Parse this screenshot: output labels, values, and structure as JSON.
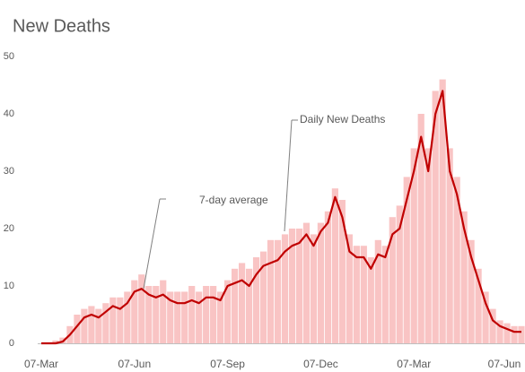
{
  "chart_data": {
    "type": "bar-line",
    "title": "New Deaths",
    "categories": [
      "07-Mar",
      null,
      null,
      null,
      null,
      null,
      null,
      null,
      null,
      null,
      null,
      null,
      null,
      "07-Jun",
      null,
      null,
      null,
      null,
      null,
      null,
      null,
      null,
      null,
      null,
      null,
      null,
      "07-Sep",
      null,
      null,
      null,
      null,
      null,
      null,
      null,
      null,
      null,
      null,
      null,
      null,
      "07-Dec",
      null,
      null,
      null,
      null,
      null,
      null,
      null,
      null,
      null,
      null,
      null,
      null,
      "07-Mar",
      null,
      null,
      null,
      null,
      null,
      null,
      null,
      null,
      null,
      null,
      null,
      null,
      "07-Jun",
      null,
      null
    ],
    "series": [
      {
        "name": "Daily New Deaths",
        "color": "#f9c4c4",
        "kind": "bar",
        "values": [
          0,
          0,
          0.5,
          1,
          3,
          5,
          6,
          6.5,
          6,
          7,
          8,
          8,
          9,
          11,
          12,
          10,
          10,
          11,
          9,
          9,
          9,
          10,
          9,
          10,
          10,
          9,
          11,
          13,
          14,
          13,
          15,
          16,
          18,
          18,
          19,
          20,
          20,
          21,
          19,
          21,
          23,
          27,
          25,
          19,
          17,
          17,
          15,
          18,
          17,
          22,
          24,
          29,
          34,
          40,
          34,
          44,
          46,
          34,
          29,
          23,
          18,
          13,
          9,
          6,
          4,
          3.5,
          3,
          3
        ]
      },
      {
        "name": "7-day average",
        "color": "#c00000",
        "kind": "line",
        "values": [
          0,
          0,
          0,
          0.3,
          1.5,
          3,
          4.5,
          5,
          4.5,
          5.5,
          6.5,
          6,
          7,
          9,
          9.5,
          8.5,
          8,
          8.5,
          7.5,
          7,
          7,
          7.5,
          7,
          8,
          8,
          7.5,
          10,
          10.5,
          11,
          10,
          12,
          13.5,
          14,
          14.5,
          16,
          17,
          17.5,
          19,
          17,
          19.5,
          21,
          25.5,
          22,
          16,
          15,
          15,
          13,
          15.5,
          15,
          19,
          20,
          25,
          30,
          36,
          30,
          40,
          44,
          30,
          26,
          20,
          15,
          11,
          7,
          4,
          3,
          2.5,
          2,
          2
        ]
      }
    ],
    "ylim": [
      0,
      50
    ],
    "yticks": [
      0,
      10,
      20,
      30,
      40,
      50
    ],
    "grid": false
  }
}
